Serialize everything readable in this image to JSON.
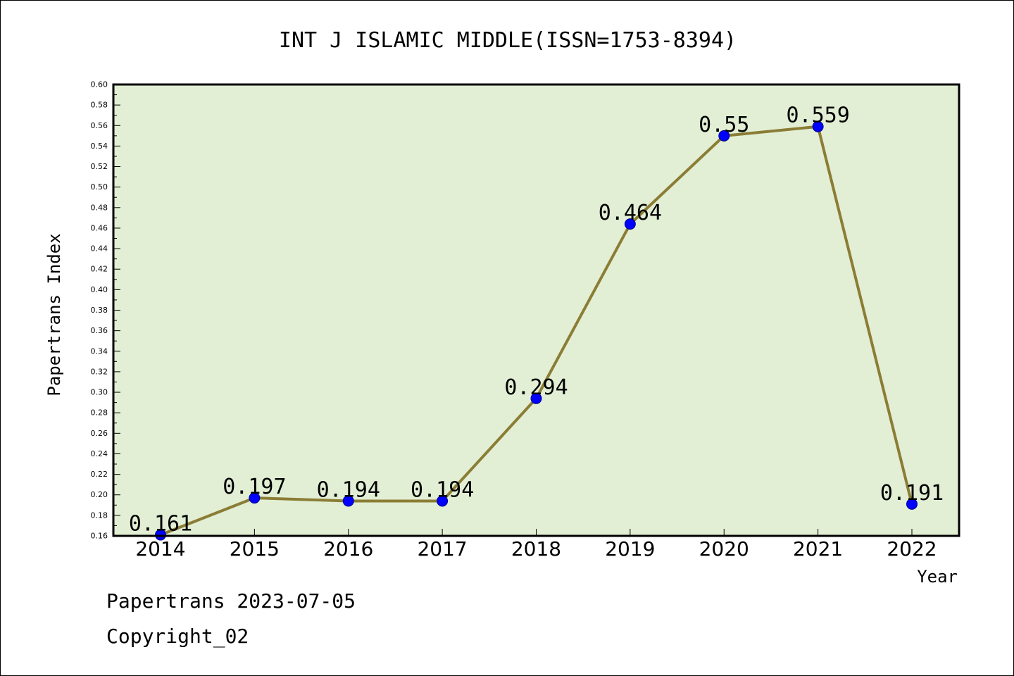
{
  "chart_data": {
    "type": "line",
    "title": "INT J ISLAMIC MIDDLE(ISSN=1753-8394)",
    "xlabel": "Year",
    "ylabel": "Papertrans Index",
    "categories": [
      "2014",
      "2015",
      "2016",
      "2017",
      "2018",
      "2019",
      "2020",
      "2021",
      "2022"
    ],
    "series": [
      {
        "values": [
          0.161,
          0.197,
          0.194,
          0.194,
          0.294,
          0.464,
          0.55,
          0.559,
          0.191
        ],
        "labels": [
          "0.161",
          "0.197",
          "0.194",
          "0.194",
          "0.294",
          "0.464",
          "0.55",
          "0.559",
          "0.191"
        ]
      }
    ],
    "ylim": [
      0.16,
      0.6
    ],
    "yticks": [
      "0.16",
      "0.18",
      "0.20",
      "0.22",
      "0.24",
      "0.26",
      "0.28",
      "0.30",
      "0.32",
      "0.34",
      "0.36",
      "0.38",
      "0.40",
      "0.42",
      "0.44",
      "0.46",
      "0.48",
      "0.50",
      "0.52",
      "0.54",
      "0.56",
      "0.58",
      "0.60"
    ],
    "grid": false,
    "colors": {
      "plot_background": "#e2efd5",
      "line": "#8b7d35",
      "marker": "#0000ff",
      "marker_edge": "#00008b"
    }
  },
  "footer": {
    "line1": "Papertrans 2023-07-05",
    "line2": "Copyright_02"
  }
}
